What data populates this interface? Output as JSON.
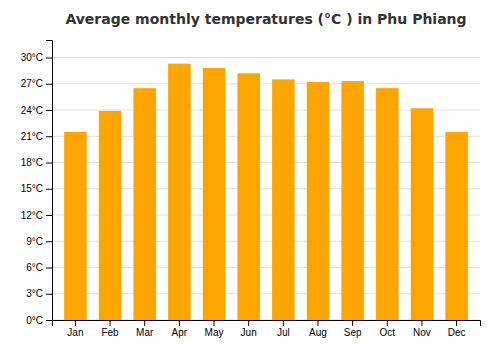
{
  "chart_data": {
    "type": "bar",
    "title": "Average monthly temperatures (°C ) in Phu Phiang",
    "categories": [
      "Jan",
      "Feb",
      "Mar",
      "Apr",
      "May",
      "Jun",
      "Jul",
      "Aug",
      "Sep",
      "Oct",
      "Nov",
      "Dec"
    ],
    "values": [
      21.5,
      23.9,
      26.5,
      29.3,
      28.8,
      28.2,
      27.5,
      27.2,
      27.3,
      26.5,
      24.2,
      21.5
    ],
    "color": "#FFA500",
    "ylim": [
      0,
      32
    ],
    "yticks": [
      {
        "value": 0,
        "label": "0°C"
      },
      {
        "value": 3,
        "label": "3°C"
      },
      {
        "value": 6,
        "label": "6°C"
      },
      {
        "value": 9,
        "label": "9°C"
      },
      {
        "value": 12,
        "label": "12°C"
      },
      {
        "value": 15,
        "label": "15°C"
      },
      {
        "value": 18,
        "label": "18°C"
      },
      {
        "value": 21,
        "label": "21°C"
      },
      {
        "value": 24,
        "label": "24°C"
      },
      {
        "value": 27,
        "label": "27°C"
      },
      {
        "value": 30,
        "label": "30°C"
      }
    ],
    "grid": true
  }
}
